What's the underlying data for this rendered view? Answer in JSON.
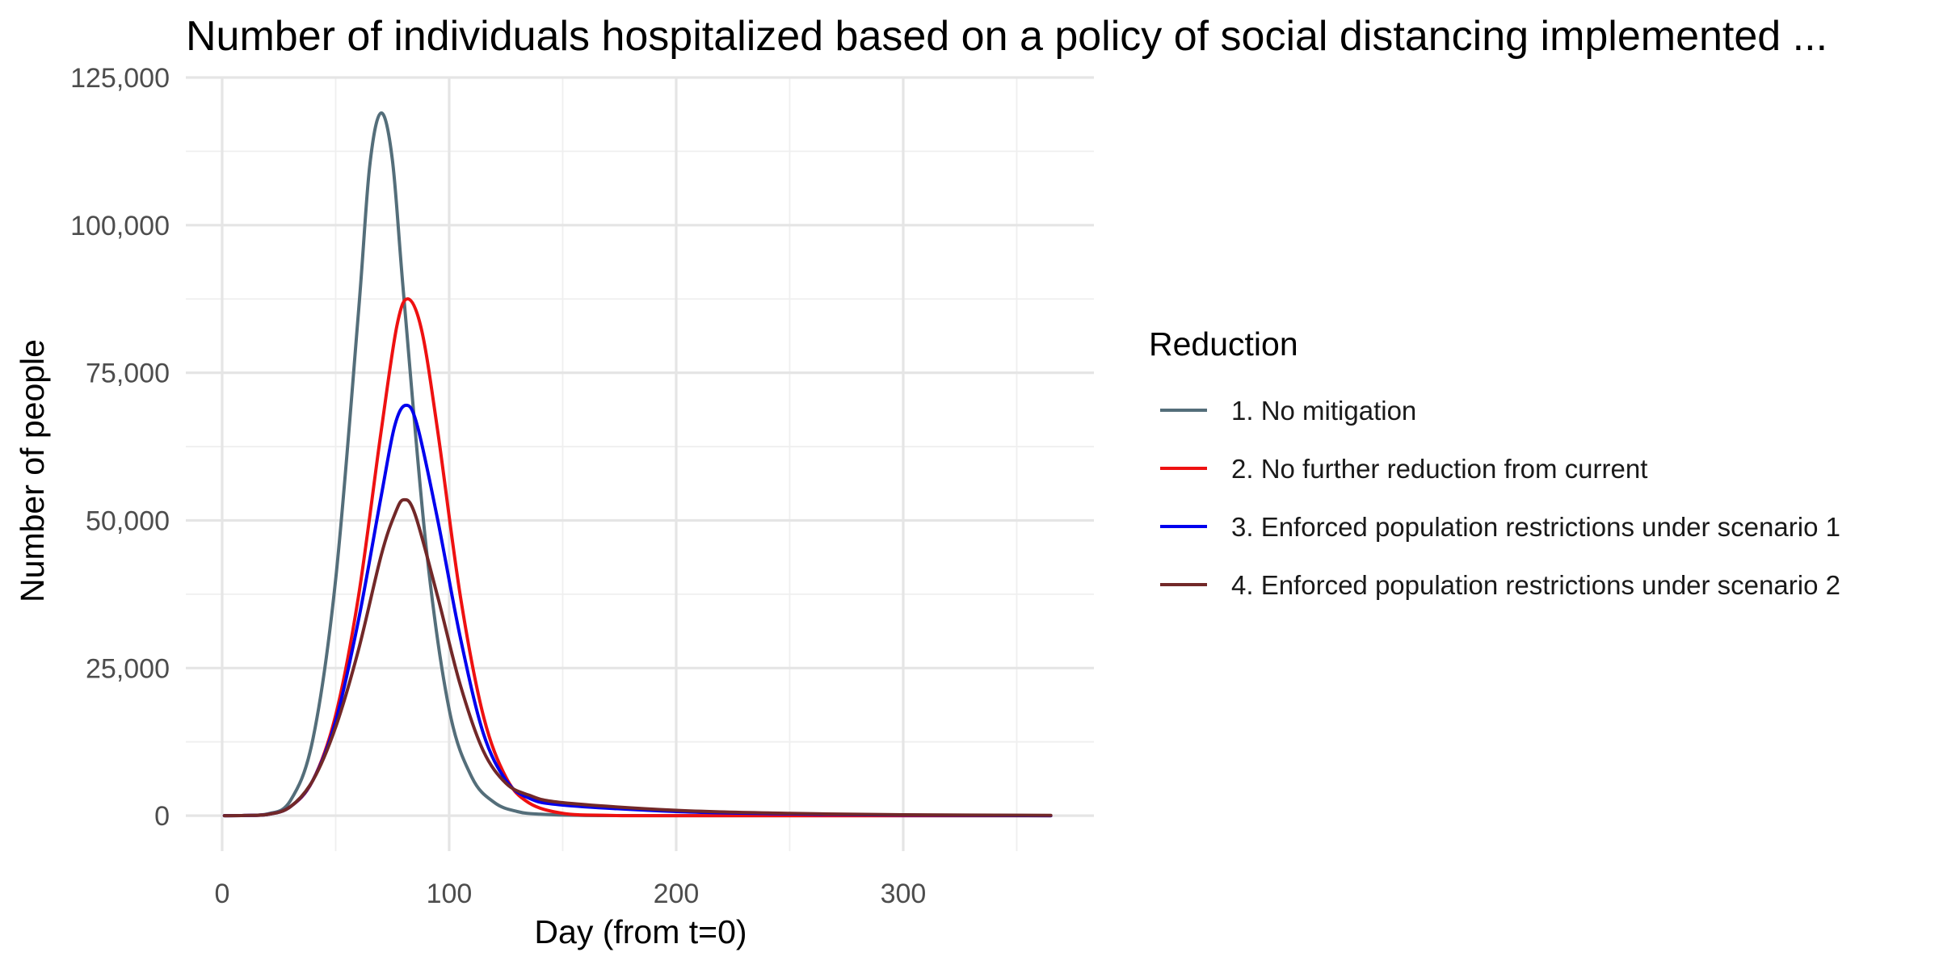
{
  "chart_data": {
    "type": "line",
    "title": "Number of individuals hospitalized based on a policy of social distancing implemented ...",
    "xlabel": "Day (from t=0)",
    "ylabel": "Number of people",
    "xlim": [
      -16,
      384
    ],
    "ylim": [
      -6000,
      125000
    ],
    "x_ticks": [
      0,
      100,
      200,
      300
    ],
    "x_tick_labels": [
      "0",
      "100",
      "200",
      "300"
    ],
    "x_minor_ticks": [
      50,
      150,
      250,
      350
    ],
    "y_ticks": [
      0,
      25000,
      50000,
      75000,
      100000,
      125000
    ],
    "y_tick_labels": [
      "0",
      "25,000",
      "50,000",
      "75,000",
      "100,000",
      "125,000"
    ],
    "y_minor_ticks": [
      12500,
      37500,
      62500,
      87500,
      112500
    ],
    "grid": true,
    "legend": {
      "title": "Reduction",
      "position": "right"
    },
    "series": [
      {
        "name": "1. No mitigation",
        "color": "#546e7a",
        "points": [
          [
            1,
            0
          ],
          [
            10,
            30
          ],
          [
            20,
            300
          ],
          [
            30,
            2500
          ],
          [
            40,
            13000
          ],
          [
            50,
            40000
          ],
          [
            60,
            85000
          ],
          [
            65,
            110000
          ],
          [
            70,
            119000
          ],
          [
            75,
            111000
          ],
          [
            80,
            88000
          ],
          [
            90,
            45000
          ],
          [
            100,
            18000
          ],
          [
            110,
            6500
          ],
          [
            120,
            2200
          ],
          [
            130,
            700
          ],
          [
            140,
            250
          ],
          [
            160,
            40
          ],
          [
            200,
            0
          ],
          [
            365,
            0
          ]
        ]
      },
      {
        "name": "2. No further reduction from current",
        "color": "#ee1111",
        "points": [
          [
            1,
            0
          ],
          [
            10,
            30
          ],
          [
            20,
            200
          ],
          [
            30,
            1500
          ],
          [
            40,
            6000
          ],
          [
            50,
            17000
          ],
          [
            60,
            37000
          ],
          [
            70,
            65000
          ],
          [
            77,
            83000
          ],
          [
            82,
            87500
          ],
          [
            88,
            82000
          ],
          [
            95,
            65000
          ],
          [
            105,
            37000
          ],
          [
            115,
            17000
          ],
          [
            125,
            6500
          ],
          [
            135,
            2200
          ],
          [
            150,
            400
          ],
          [
            170,
            50
          ],
          [
            200,
            0
          ],
          [
            365,
            0
          ]
        ]
      },
      {
        "name": "3. Enforced population restrictions under scenario 1",
        "color": "#0000ee",
        "points": [
          [
            1,
            0
          ],
          [
            10,
            30
          ],
          [
            20,
            200
          ],
          [
            30,
            1500
          ],
          [
            40,
            6000
          ],
          [
            50,
            16000
          ],
          [
            60,
            33000
          ],
          [
            70,
            54000
          ],
          [
            76,
            66000
          ],
          [
            81,
            69500
          ],
          [
            86,
            66000
          ],
          [
            95,
            50000
          ],
          [
            105,
            30000
          ],
          [
            115,
            14000
          ],
          [
            125,
            6000
          ],
          [
            135,
            3000
          ],
          [
            150,
            1800
          ],
          [
            200,
            700
          ],
          [
            250,
            300
          ],
          [
            300,
            100
          ],
          [
            365,
            0
          ]
        ]
      },
      {
        "name": "4. Enforced population restrictions under scenario 2",
        "color": "#722828",
        "points": [
          [
            1,
            0
          ],
          [
            10,
            30
          ],
          [
            20,
            200
          ],
          [
            30,
            1500
          ],
          [
            40,
            6000
          ],
          [
            50,
            15000
          ],
          [
            60,
            28000
          ],
          [
            70,
            44000
          ],
          [
            76,
            51000
          ],
          [
            80,
            53500
          ],
          [
            85,
            51000
          ],
          [
            95,
            37000
          ],
          [
            105,
            22000
          ],
          [
            115,
            11000
          ],
          [
            125,
            5500
          ],
          [
            135,
            3500
          ],
          [
            150,
            2200
          ],
          [
            200,
            900
          ],
          [
            250,
            400
          ],
          [
            300,
            150
          ],
          [
            365,
            50
          ]
        ]
      }
    ]
  }
}
